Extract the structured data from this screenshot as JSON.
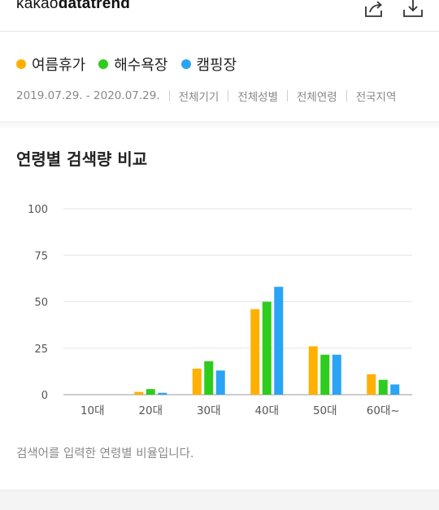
{
  "header": {
    "logo_prefix": "kakao",
    "logo_bold": "datatrend",
    "share_icon": "share-icon",
    "download_icon": "download-icon"
  },
  "legend": [
    {
      "label": "여름휴가",
      "color": "#ffb000"
    },
    {
      "label": "해수욕장",
      "color": "#2ecc1c"
    },
    {
      "label": "캠핑장",
      "color": "#2aa4f4"
    }
  ],
  "filters": {
    "period": "2019.07.29. - 2020.07.29.",
    "device": "전체기기",
    "gender": "전체성별",
    "age": "전체연령",
    "region": "전국지역"
  },
  "section": {
    "title": "연령별 검색량 비교",
    "caption": "검색어를 입력한 연령별 비율입니다."
  },
  "chart_data": {
    "type": "bar",
    "categories": [
      "10대",
      "20대",
      "30대",
      "40대",
      "50대",
      "60대~"
    ],
    "series": [
      {
        "name": "여름휴가",
        "color": "#ffb000",
        "values": [
          0,
          1.5,
          14,
          46,
          26,
          11
        ]
      },
      {
        "name": "해수욕장",
        "color": "#2ecc1c",
        "values": [
          0,
          3,
          18,
          50,
          21.5,
          8
        ]
      },
      {
        "name": "캠핑장",
        "color": "#2aa4f4",
        "values": [
          0,
          1,
          13,
          58,
          21.5,
          5.5
        ]
      }
    ],
    "yticks": [
      0,
      25,
      50,
      75,
      100
    ],
    "ylim": [
      0,
      100
    ],
    "grid": true
  }
}
